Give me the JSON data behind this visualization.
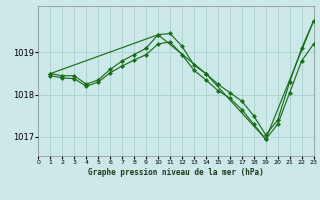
{
  "title": "Graphe pression niveau de la mer (hPa)",
  "bg_color": "#cce8e8",
  "grid_color": "#aad0d0",
  "line_color": "#1a6e1a",
  "marker_color": "#1a6e1a",
  "ylabel_ticks": [
    1017,
    1018,
    1019
  ],
  "xlim": [
    0,
    23
  ],
  "ylim": [
    1016.55,
    1020.1
  ],
  "series1_x": [
    1,
    2,
    3,
    4,
    5,
    6,
    7,
    8,
    9,
    10,
    11,
    12,
    13,
    14,
    15,
    16,
    17,
    18,
    19,
    20,
    21,
    22,
    23
  ],
  "series1_y": [
    1018.5,
    1018.45,
    1018.45,
    1018.25,
    1018.35,
    1018.6,
    1018.8,
    1018.95,
    1019.1,
    1019.42,
    1019.45,
    1019.15,
    1018.7,
    1018.5,
    1018.25,
    1018.05,
    1017.85,
    1017.5,
    1017.05,
    1017.4,
    1018.3,
    1019.1,
    1019.75
  ],
  "series2_x": [
    1,
    2,
    3,
    4,
    5,
    6,
    7,
    8,
    9,
    10,
    11,
    12,
    13,
    14,
    15,
    16,
    17,
    18,
    19,
    20,
    21,
    22,
    23
  ],
  "series2_y": [
    1018.45,
    1018.4,
    1018.38,
    1018.2,
    1018.3,
    1018.52,
    1018.68,
    1018.82,
    1018.95,
    1019.2,
    1019.25,
    1018.95,
    1018.58,
    1018.35,
    1018.1,
    1017.92,
    1017.65,
    1017.3,
    1016.95,
    1017.3,
    1018.05,
    1018.8,
    1019.2
  ],
  "series3_x": [
    1,
    10,
    14,
    19,
    23
  ],
  "series3_y": [
    1018.5,
    1019.42,
    1018.5,
    1016.95,
    1019.75
  ]
}
